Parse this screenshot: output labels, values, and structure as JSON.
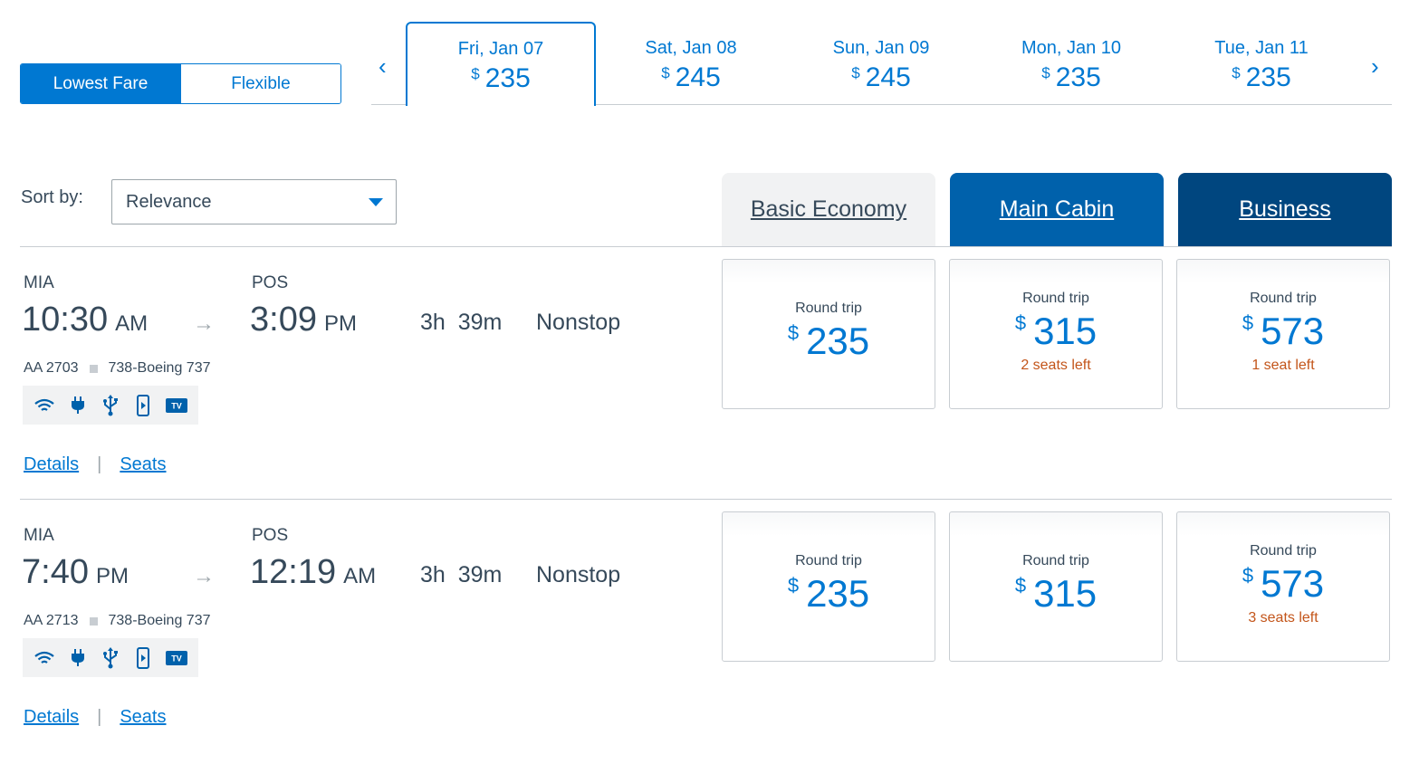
{
  "fare_toggle": {
    "lowest_label": "Lowest Fare",
    "flexible_label": "Flexible"
  },
  "date_strip": {
    "currency": "$",
    "dates": [
      {
        "label": "Fri, Jan 07",
        "price": "235"
      },
      {
        "label": "Sat, Jan 08",
        "price": "245"
      },
      {
        "label": "Sun, Jan 09",
        "price": "245"
      },
      {
        "label": "Mon, Jan 10",
        "price": "235"
      },
      {
        "label": "Tue, Jan 11",
        "price": "235"
      }
    ],
    "prev_icon": "chevron-left-icon",
    "next_icon": "chevron-right-icon"
  },
  "sort": {
    "label": "Sort by:",
    "selected": "Relevance"
  },
  "cabins": {
    "basic": "Basic Economy",
    "main": "Main Cabin",
    "business": "Business"
  },
  "flights": [
    {
      "origin": "MIA",
      "dep_time": "10:30",
      "dep_ampm": "AM",
      "dest": "POS",
      "arr_time": "3:09",
      "arr_ampm": "PM",
      "duration": "3h  39m",
      "stops": "Nonstop",
      "flight_no": "AA 2703",
      "aircraft": "738-Boeing 737",
      "details_label": "Details",
      "seats_label": "Seats",
      "sep": "|",
      "fares": {
        "basic": {
          "type": "Round trip",
          "currency": "$",
          "price": "235",
          "seats": ""
        },
        "main": {
          "type": "Round trip",
          "currency": "$",
          "price": "315",
          "seats": "2 seats left"
        },
        "business": {
          "type": "Round trip",
          "currency": "$",
          "price": "573",
          "seats": "1 seat left"
        }
      }
    },
    {
      "origin": "MIA",
      "dep_time": "7:40",
      "dep_ampm": "PM",
      "dest": "POS",
      "arr_time": "12:19",
      "arr_ampm": "AM",
      "duration": "3h  39m",
      "stops": "Nonstop",
      "flight_no": "AA 2713",
      "aircraft": "738-Boeing 737",
      "details_label": "Details",
      "seats_label": "Seats",
      "sep": "|",
      "fares": {
        "basic": {
          "type": "Round trip",
          "currency": "$",
          "price": "235",
          "seats": ""
        },
        "main": {
          "type": "Round trip",
          "currency": "$",
          "price": "315",
          "seats": ""
        },
        "business": {
          "type": "Round trip",
          "currency": "$",
          "price": "573",
          "seats": "3 seats left"
        }
      }
    }
  ],
  "amenities": [
    "wifi-icon",
    "power-plug-icon",
    "usb-icon",
    "mobile-entertainment-icon",
    "tv-icon"
  ],
  "amenity_tv_text": "TV",
  "colors": {
    "accent": "#0078d2",
    "main_cabin": "#0061ab",
    "business": "#00467f",
    "seats_warning": "#c3551a",
    "text": "#36495a"
  }
}
